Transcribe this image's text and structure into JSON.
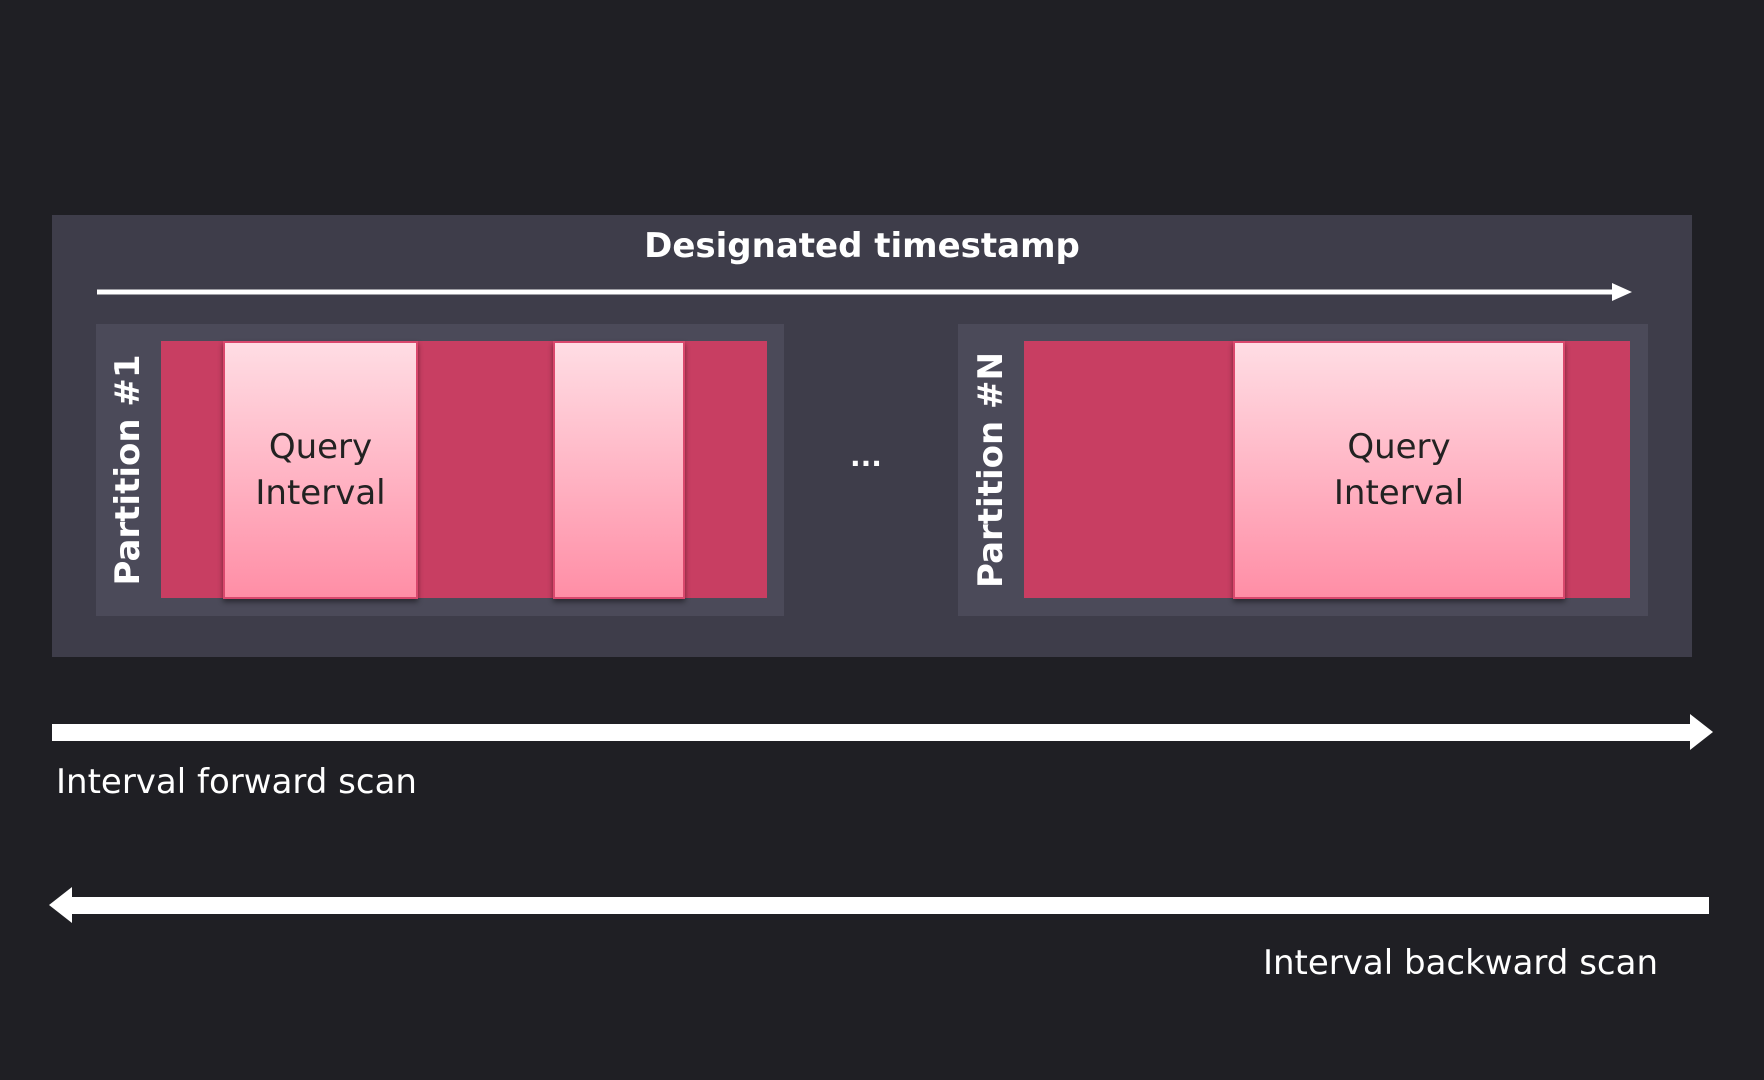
{
  "title": "Designated timestamp",
  "partitions": [
    {
      "label": "Partition #1",
      "query_label": "Query\nInterval"
    },
    {
      "label": "Partition #N",
      "query_label": "Query\nInterval"
    }
  ],
  "ellipsis": "...",
  "forward_label": "Interval forward scan",
  "backward_label": "Interval backward scan",
  "colors": {
    "background": "#1f1f24",
    "panel": "#3e3d4a",
    "partition": "#c83e62",
    "query_interval": "#ff8ea6"
  }
}
